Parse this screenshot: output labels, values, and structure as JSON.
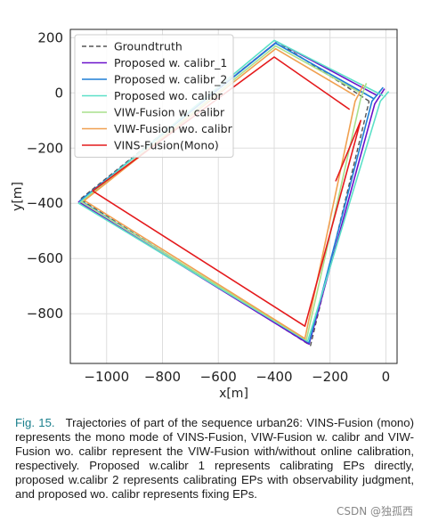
{
  "chart_data": {
    "type": "line",
    "xlabel": "x[m]",
    "ylabel": "y[m]",
    "xlim": [
      -1130,
      40
    ],
    "ylim": [
      -980,
      230
    ],
    "xticks": [
      -1000,
      -800,
      -600,
      -400,
      -200,
      0
    ],
    "yticks": [
      200,
      0,
      -200,
      -400,
      -600,
      -800
    ],
    "xtick_labels": [
      "−1000",
      "−800",
      "−600",
      "−400",
      "−200",
      "0"
    ],
    "ytick_labels": [
      "200",
      "0",
      "−200",
      "−400",
      "−600",
      "−800"
    ],
    "grid": true,
    "legend_position": "top-left",
    "series": [
      {
        "name": "Groundtruth",
        "color": "#555555",
        "dashed": true,
        "points": [
          [
            -60,
            -30
          ],
          [
            -390,
            185
          ],
          [
            -1095,
            -385
          ],
          [
            -270,
            -915
          ],
          [
            -60,
            -30
          ]
        ]
      },
      {
        "name": "Proposed w. calibr_1",
        "color": "#6a11cb",
        "dashed": false,
        "points": [
          [
            -30,
            -10
          ],
          [
            -390,
            185
          ],
          [
            -1100,
            -395
          ],
          [
            -275,
            -910
          ],
          [
            -40,
            -40
          ],
          [
            -5,
            15
          ]
        ]
      },
      {
        "name": "Proposed w. calibr_2",
        "color": "#1f7fd6",
        "dashed": false,
        "points": [
          [
            -45,
            -20
          ],
          [
            -395,
            180
          ],
          [
            -1095,
            -390
          ],
          [
            -275,
            -905
          ],
          [
            -50,
            -30
          ],
          [
            -10,
            20
          ]
        ]
      },
      {
        "name": "Proposed wo. calibr",
        "color": "#5ce0c8",
        "dashed": false,
        "points": [
          [
            -10,
            -10
          ],
          [
            -400,
            190
          ],
          [
            -1100,
            -400
          ],
          [
            -280,
            -900
          ],
          [
            -20,
            -30
          ],
          [
            10,
            5
          ]
        ]
      },
      {
        "name": "VIW-Fusion w. calibr",
        "color": "#a8e08c",
        "dashed": false,
        "points": [
          [
            -90,
            0
          ],
          [
            -395,
            170
          ],
          [
            -1090,
            -395
          ],
          [
            -285,
            -895
          ],
          [
            -90,
            -20
          ],
          [
            -70,
            35
          ]
        ]
      },
      {
        "name": "VIW-Fusion wo. calibr",
        "color": "#f0a050",
        "dashed": false,
        "points": [
          [
            -110,
            -10
          ],
          [
            -395,
            160
          ],
          [
            -1080,
            -390
          ],
          [
            -290,
            -890
          ],
          [
            -110,
            -30
          ],
          [
            -80,
            30
          ]
        ]
      },
      {
        "name": "VINS-Fusion(Mono)",
        "color": "#e41a1c",
        "dashed": false,
        "points": [
          [
            -130,
            -60
          ],
          [
            -400,
            130
          ],
          [
            -1050,
            -355
          ],
          [
            -290,
            -845
          ],
          [
            -90,
            -100
          ],
          [
            -180,
            -320
          ]
        ]
      }
    ]
  },
  "caption": {
    "label": "Fig. 15.",
    "text": "Trajectories of part of the sequence urban26: VINS-Fusion (mono) represents the mono mode of VINS-Fusion, VIW-Fusion w. calibr and VIW-Fusion wo. calibr represent the VIW-Fusion with/without online calibration, respectively. Proposed w.calibr 1 represents calibrating EPs directly, proposed w.calibr 2 represents calibrating EPs with observability judgment, and proposed wo. calibr represents fixing EPs."
  },
  "watermark": "CSDN @独孤西"
}
